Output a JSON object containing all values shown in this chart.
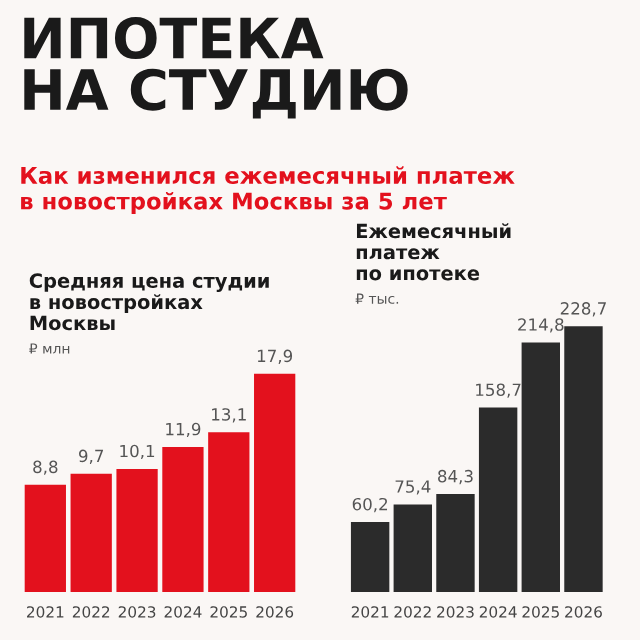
{
  "chart_data": [
    {
      "type": "bar",
      "title": "Средняя цена студии\nв новостройках\nМосквы",
      "ylabel": "₽ млн",
      "annotations": [
        "ИПОТЕКА\nНА СТУДИЮ",
        "Как изменился ежемесячный платеж\nв новостройках Москвы за 5 лет"
      ],
      "categories": [
        "2021",
        "2022",
        "2023",
        "2024",
        "2025",
        "2026"
      ],
      "values": [
        8.8,
        9.7,
        10.1,
        11.9,
        13.1,
        17.9
      ],
      "value_labels": [
        "8,8",
        "9,7",
        "10,1",
        "11,9",
        "13,1",
        "17,9"
      ],
      "color": "#e3111d",
      "tick_labels": "x",
      "grid": false,
      "legend": false
    },
    {
      "type": "bar",
      "title": "Ежемесячный\nплатеж\nпо ипотеке",
      "ylabel": "₽ тыс.",
      "categories": [
        "2021",
        "2022",
        "2023",
        "2024",
        "2025",
        "2026"
      ],
      "values": [
        60.2,
        75.4,
        84.3,
        158.7,
        214.8,
        228.7
      ],
      "value_labels": [
        "60,2",
        "75,4",
        "84,3",
        "158,7",
        "214,8",
        "228,7"
      ],
      "color": "#2b2b2b",
      "tick_labels": "x",
      "grid": false,
      "legend": false
    }
  ]
}
